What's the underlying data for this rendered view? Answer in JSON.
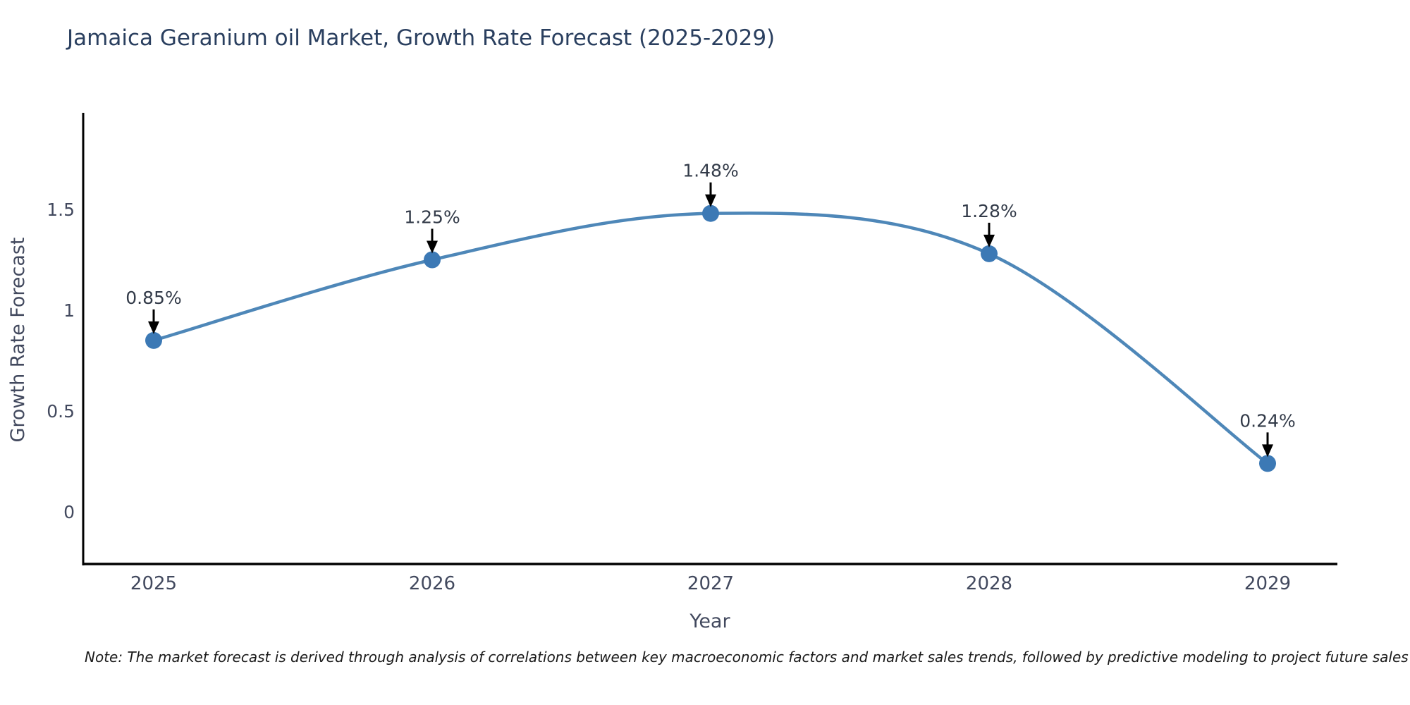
{
  "title": "Jamaica Geranium oil Market, Growth Rate Forecast (2025-2029)",
  "note": "Note: The market forecast is derived through analysis of correlations between key macroeconomic factors and market sales trends, followed by predictive modeling to project future sales",
  "colors": {
    "title": "#2a3f5f",
    "tick_text": "#42495e",
    "annotation_text": "#333b49",
    "axis_line": "#000000",
    "line": "#4e87b8",
    "marker": "#3c79b5",
    "arrow": "#000000"
  },
  "chart_data": {
    "type": "line",
    "title": "Jamaica Geranium oil Market, Growth Rate Forecast (2025-2029)",
    "xlabel": "Year",
    "ylabel": "Growth Rate Forecast",
    "categories": [
      "2025",
      "2026",
      "2027",
      "2028",
      "2029"
    ],
    "values": [
      0.85,
      1.25,
      1.48,
      1.28,
      0.24
    ],
    "point_labels": [
      "0.85%",
      "1.25%",
      "1.48%",
      "1.28%",
      "0.24%"
    ],
    "y_ticks": [
      0,
      0.5,
      1,
      1.5
    ],
    "y_tick_labels": [
      "0",
      "0.5",
      "1",
      "1.5"
    ],
    "ylim": [
      -0.26,
      1.98
    ],
    "grid": false,
    "legend": false,
    "smooth": true,
    "annotations": "value labels with downward arrows above each point"
  }
}
